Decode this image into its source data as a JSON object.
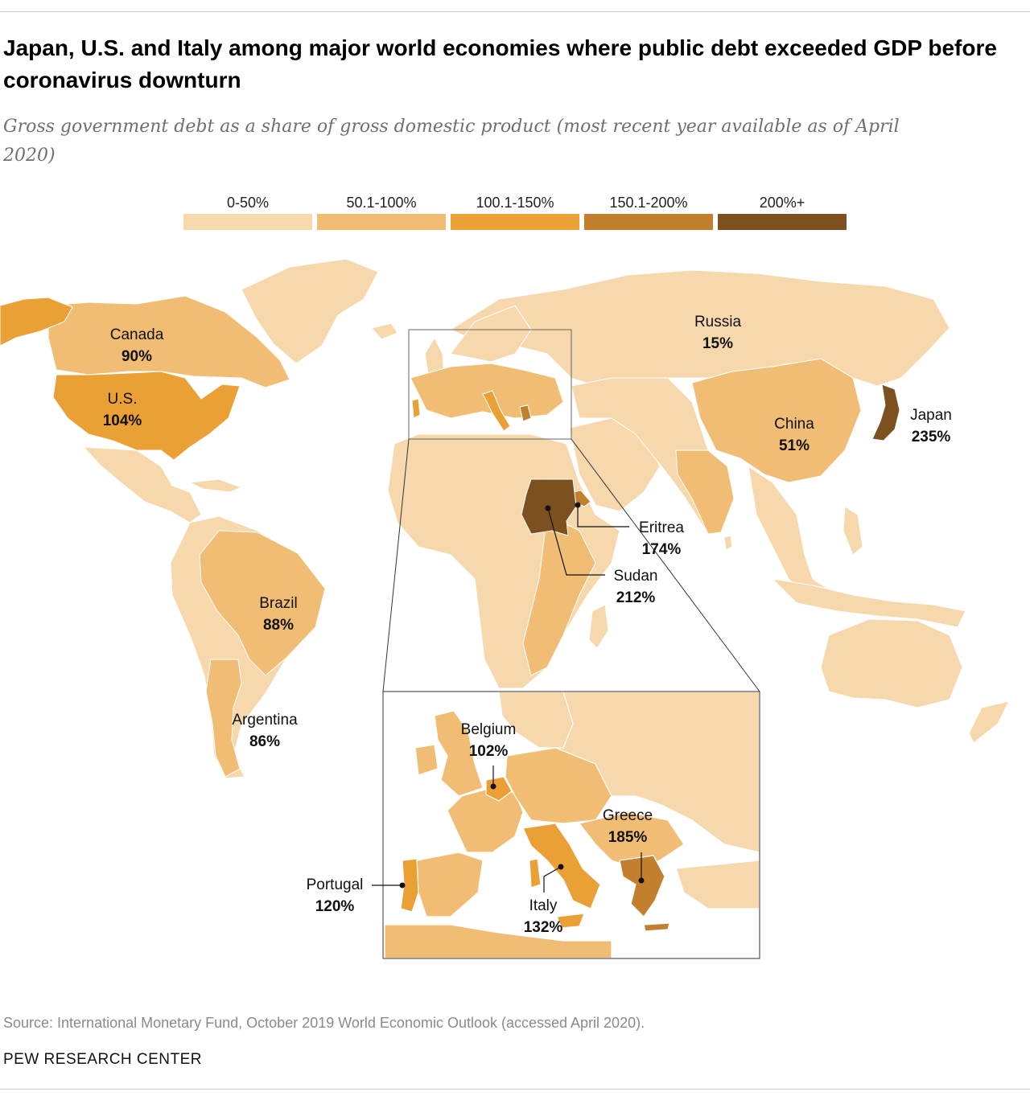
{
  "header": {
    "title": "Japan, U.S. and Italy among major world economies where public debt exceeded GDP before coronavirus downturn",
    "subtitle": "Gross government debt as a share of gross domestic product (most recent year available as of April 2020)"
  },
  "legend": [
    {
      "label": "0-50%",
      "color": "#f6d8ac"
    },
    {
      "label": "50.1-100%",
      "color": "#f1bd74"
    },
    {
      "label": "100.1-150%",
      "color": "#eba036"
    },
    {
      "label": "150.1-200%",
      "color": "#c2802f"
    },
    {
      "label": "200%+",
      "color": "#7d5020"
    }
  ],
  "countries": [
    {
      "id": "canada",
      "name": "Canada",
      "value": "90%",
      "bin": 1
    },
    {
      "id": "us",
      "name": "U.S.",
      "value": "104%",
      "bin": 2
    },
    {
      "id": "brazil",
      "name": "Brazil",
      "value": "88%",
      "bin": 1
    },
    {
      "id": "argentina",
      "name": "Argentina",
      "value": "86%",
      "bin": 1
    },
    {
      "id": "russia",
      "name": "Russia",
      "value": "15%",
      "bin": 0
    },
    {
      "id": "china",
      "name": "China",
      "value": "51%",
      "bin": 1
    },
    {
      "id": "japan",
      "name": "Japan",
      "value": "235%",
      "bin": 4
    },
    {
      "id": "eritrea",
      "name": "Eritrea",
      "value": "174%",
      "bin": 3
    },
    {
      "id": "sudan",
      "name": "Sudan",
      "value": "212%",
      "bin": 4
    },
    {
      "id": "belgium",
      "name": "Belgium",
      "value": "102%",
      "bin": 2
    },
    {
      "id": "greece",
      "name": "Greece",
      "value": "185%",
      "bin": 3
    },
    {
      "id": "portugal",
      "name": "Portugal",
      "value": "120%",
      "bin": 2
    },
    {
      "id": "italy",
      "name": "Italy",
      "value": "132%",
      "bin": 2
    }
  ],
  "footer": {
    "source": "Source: International Monetary Fund, October 2019 World Economic Outlook (accessed April 2020).",
    "brand": "PEW RESEARCH CENTER"
  }
}
